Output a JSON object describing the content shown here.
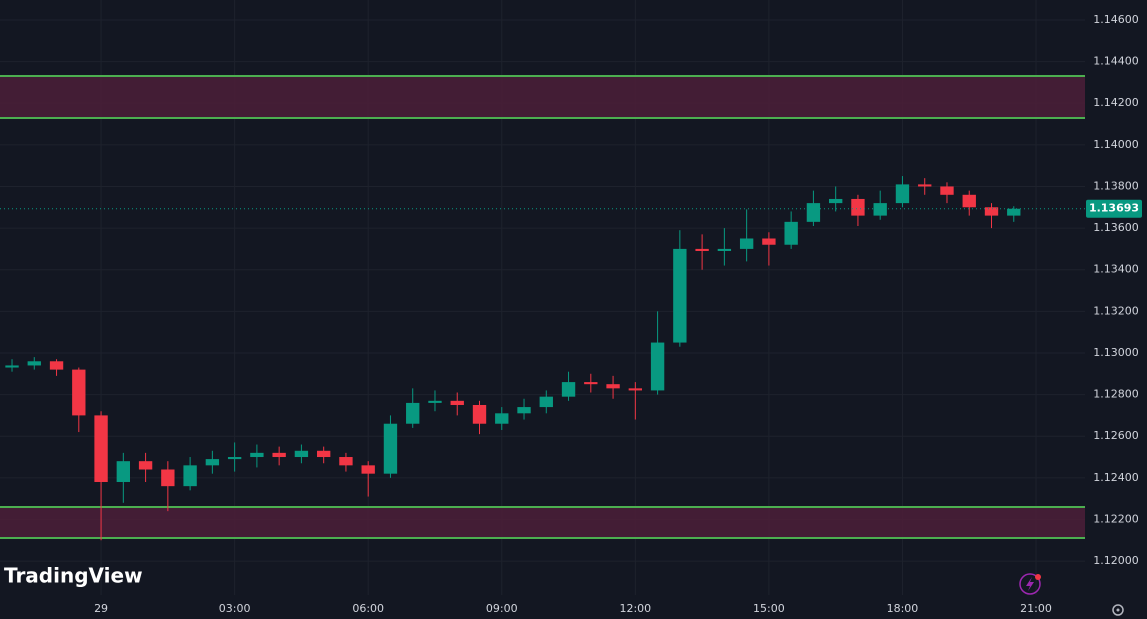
{
  "chart_data": {
    "type": "candlestick",
    "watermark": "TradingView",
    "x": [
      -2,
      -1.5,
      -1,
      -0.5,
      0,
      0.5,
      1,
      1.5,
      2,
      2.5,
      3,
      3.5,
      4,
      4.5,
      5,
      5.5,
      6,
      6.5,
      7,
      7.5,
      8,
      8.5,
      9,
      9.5,
      10,
      10.5,
      11,
      11.5,
      12,
      12.5,
      13,
      13.5,
      14,
      14.5,
      15,
      15.5,
      16,
      16.5,
      17,
      17.5,
      18,
      18.5,
      19,
      19.5,
      20,
      20.5
    ],
    "open": [
      1.1293,
      1.1294,
      1.1296,
      1.1292,
      1.127,
      1.1238,
      1.1248,
      1.1244,
      1.1236,
      1.1246,
      1.1249,
      1.125,
      1.1252,
      1.125,
      1.1253,
      1.125,
      1.1246,
      1.1242,
      1.1266,
      1.1276,
      1.1277,
      1.1275,
      1.1266,
      1.1271,
      1.1274,
      1.1279,
      1.1286,
      1.1285,
      1.1283,
      1.1282,
      1.1305,
      1.135,
      1.1349,
      1.135,
      1.1355,
      1.1352,
      1.1363,
      1.1372,
      1.1374,
      1.1366,
      1.1372,
      1.1381,
      1.138,
      1.1376,
      1.137,
      1.1366
    ],
    "high": [
      1.1297,
      1.1298,
      1.1297,
      1.1293,
      1.1272,
      1.1252,
      1.1252,
      1.1248,
      1.125,
      1.1253,
      1.1257,
      1.1256,
      1.1255,
      1.1256,
      1.1255,
      1.1252,
      1.1248,
      1.127,
      1.1283,
      1.1282,
      1.1281,
      1.1277,
      1.1274,
      1.1278,
      1.1282,
      1.1291,
      1.129,
      1.1289,
      1.1286,
      1.132,
      1.1359,
      1.1357,
      1.136,
      1.1369,
      1.1358,
      1.1368,
      1.1378,
      1.138,
      1.1376,
      1.1378,
      1.1385,
      1.1384,
      1.1382,
      1.1378,
      1.1372,
      1.13705
    ],
    "low": [
      1.1291,
      1.1292,
      1.1289,
      1.1262,
      1.121,
      1.1228,
      1.1238,
      1.1224,
      1.1234,
      1.1242,
      1.1243,
      1.1245,
      1.1246,
      1.1247,
      1.1247,
      1.1243,
      1.1231,
      1.124,
      1.1264,
      1.1272,
      1.127,
      1.1261,
      1.1263,
      1.1268,
      1.1271,
      1.1277,
      1.1281,
      1.1278,
      1.1268,
      1.128,
      1.1303,
      1.134,
      1.1342,
      1.1344,
      1.1342,
      1.135,
      1.1361,
      1.1368,
      1.1361,
      1.1364,
      1.137,
      1.1376,
      1.1372,
      1.1366,
      1.136,
      1.1363
    ],
    "close": [
      1.1294,
      1.1296,
      1.1292,
      1.127,
      1.1238,
      1.1248,
      1.1244,
      1.1236,
      1.1246,
      1.1249,
      1.125,
      1.1252,
      1.125,
      1.1253,
      1.125,
      1.1246,
      1.1242,
      1.1266,
      1.1276,
      1.1277,
      1.1275,
      1.1266,
      1.1271,
      1.1274,
      1.1279,
      1.1286,
      1.1285,
      1.1283,
      1.1282,
      1.1305,
      1.135,
      1.1349,
      1.135,
      1.1355,
      1.1352,
      1.1363,
      1.1372,
      1.1374,
      1.1366,
      1.1372,
      1.1381,
      1.138,
      1.1376,
      1.137,
      1.1366,
      1.13693
    ],
    "up_color": "#089981",
    "down_color": "#f23645",
    "zones": [
      {
        "low": 1.14129,
        "high": 1.14331
      },
      {
        "low": 1.12111,
        "high": 1.1226
      }
    ],
    "zone_color": "#4c1f38",
    "zone_border_color": "#4caf50",
    "last_price": {
      "value": 1.13693,
      "label": "1.13693"
    },
    "xlim": [
      -2.27,
      22.1
    ],
    "ylim": [
      1.11837,
      1.14696
    ],
    "xticks": [
      {
        "value": 0,
        "label": "29"
      },
      {
        "value": 3,
        "label": "03:00"
      },
      {
        "value": 6,
        "label": "06:00"
      },
      {
        "value": 9,
        "label": "09:00"
      },
      {
        "value": 12,
        "label": "12:00"
      },
      {
        "value": 15,
        "label": "15:00"
      },
      {
        "value": 18,
        "label": "18:00"
      },
      {
        "value": 21,
        "label": "21:00"
      }
    ],
    "yticks": [
      {
        "value": 1.12,
        "label": "1.12000"
      },
      {
        "value": 1.122,
        "label": "1.12200"
      },
      {
        "value": 1.124,
        "label": "1.12400"
      },
      {
        "value": 1.126,
        "label": "1.12600"
      },
      {
        "value": 1.128,
        "label": "1.12800"
      },
      {
        "value": 1.13,
        "label": "1.13000"
      },
      {
        "value": 1.132,
        "label": "1.13200"
      },
      {
        "value": 1.134,
        "label": "1.13400"
      },
      {
        "value": 1.136,
        "label": "1.13600"
      },
      {
        "value": 1.138,
        "label": "1.13800"
      },
      {
        "value": 1.14,
        "label": "1.14000"
      },
      {
        "value": 1.142,
        "label": "1.14200"
      },
      {
        "value": 1.144,
        "label": "1.14400"
      },
      {
        "value": 1.146,
        "label": "1.14600"
      }
    ],
    "grid": true
  }
}
